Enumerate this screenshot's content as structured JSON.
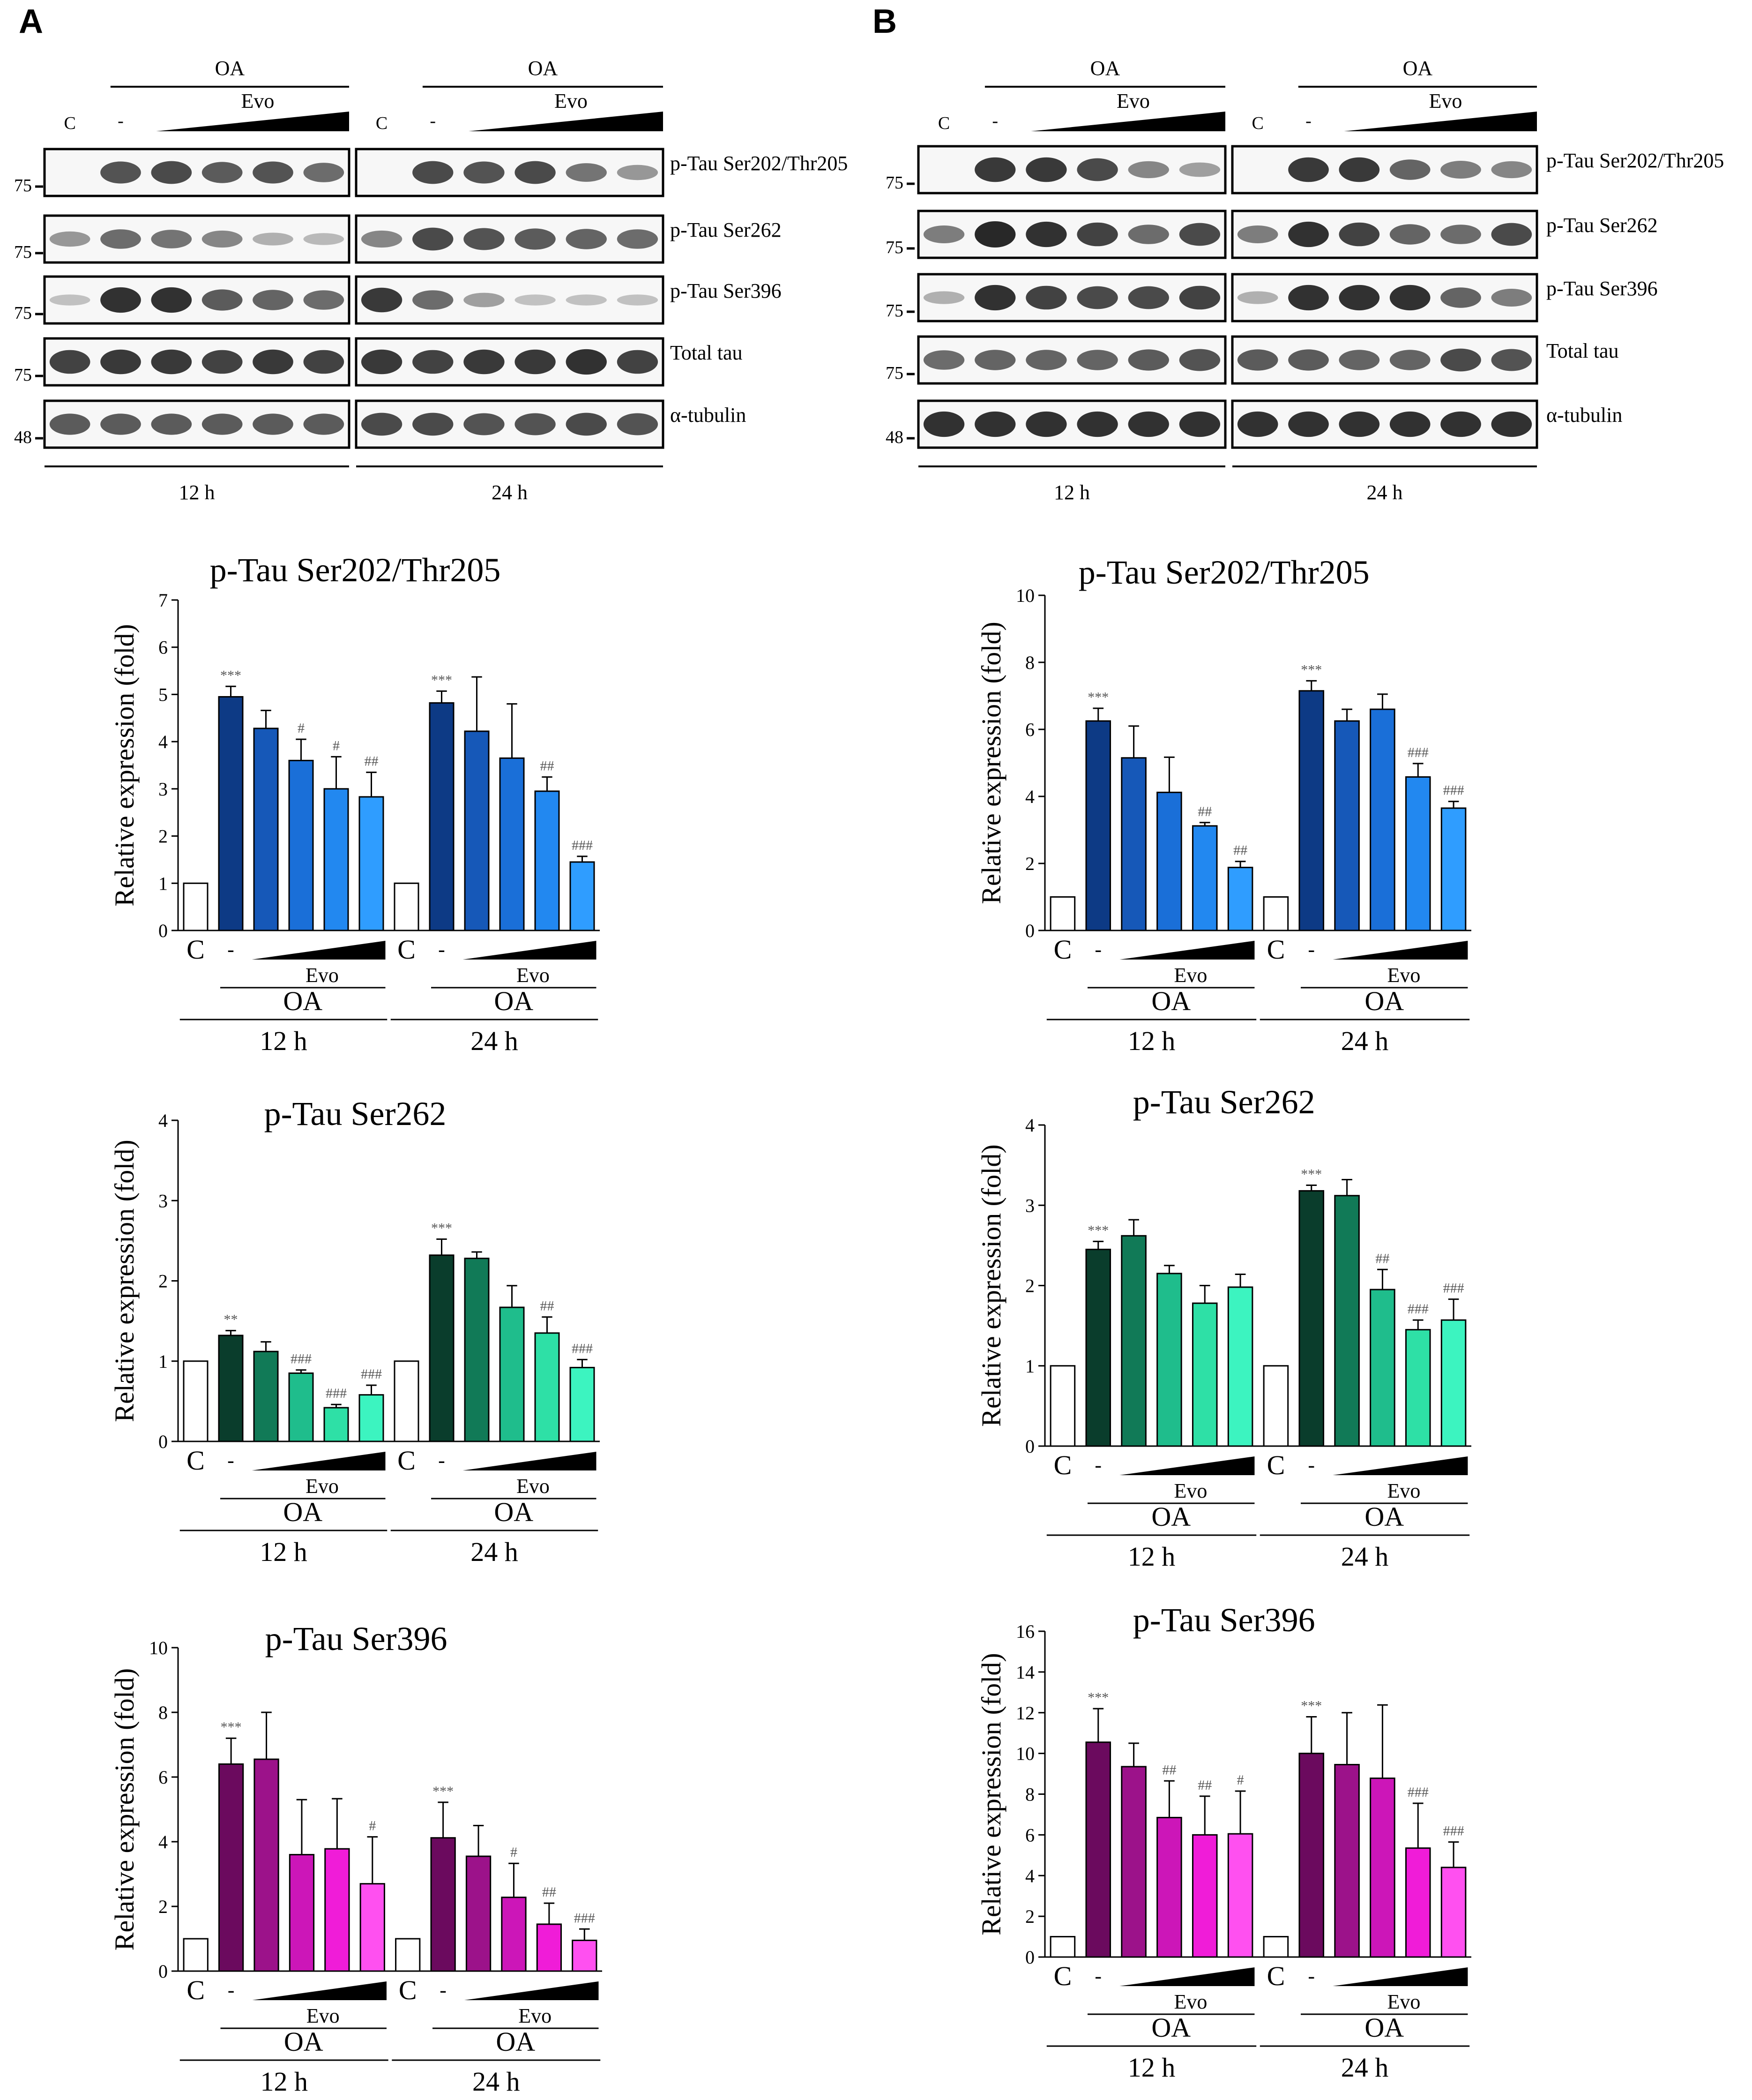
{
  "panels": [
    {
      "letter": "A"
    },
    {
      "letter": "B"
    }
  ],
  "blot_labels": {
    "oa": "OA",
    "evo": "Evo",
    "control": "C",
    "minus": "-",
    "time_12": "12 h",
    "time_24": "24 h",
    "rows": [
      "p-Tau Ser202/Thr205",
      "p-Tau Ser262",
      "p-Tau Ser396",
      "Total tau",
      "α-tubulin"
    ],
    "mw": [
      "75",
      "75",
      "75",
      "75",
      "48"
    ]
  },
  "chart_data": [
    {
      "panel": "A",
      "type": "bar",
      "title": "p-Tau Ser202/Thr205",
      "ylabel": "Relative expression (fold)",
      "ylim": [
        0,
        7
      ],
      "yticks": [
        0,
        1,
        2,
        3,
        4,
        5,
        6,
        7
      ],
      "color_family": "blue",
      "groups": [
        {
          "time": "12 h",
          "values": [
            1,
            4.95,
            4.28,
            3.6,
            3.0,
            2.83
          ],
          "errors": [
            0,
            0.22,
            0.38,
            0.45,
            0.68,
            0.52
          ],
          "sig": [
            "",
            "***",
            "",
            "#",
            "#",
            "##"
          ]
        },
        {
          "time": "24 h",
          "values": [
            1,
            4.82,
            4.22,
            3.65,
            2.95,
            1.45
          ],
          "errors": [
            0,
            0.25,
            1.15,
            1.15,
            0.3,
            0.12
          ],
          "sig": [
            "",
            "***",
            "",
            "",
            "##",
            "###"
          ]
        }
      ]
    },
    {
      "panel": "A",
      "type": "bar",
      "title": "p-Tau Ser262",
      "ylabel": "Relative expression (fold)",
      "ylim": [
        0,
        4
      ],
      "yticks": [
        0,
        1,
        2,
        3,
        4
      ],
      "color_family": "green",
      "groups": [
        {
          "time": "12 h",
          "values": [
            1,
            1.32,
            1.12,
            0.85,
            0.42,
            0.58
          ],
          "errors": [
            0,
            0.06,
            0.12,
            0.04,
            0.04,
            0.12
          ],
          "sig": [
            "",
            "**",
            "",
            "###",
            "###",
            "###"
          ]
        },
        {
          "time": "24 h",
          "values": [
            1,
            2.32,
            2.28,
            1.67,
            1.35,
            0.92
          ],
          "errors": [
            0,
            0.2,
            0.08,
            0.27,
            0.2,
            0.1
          ],
          "sig": [
            "",
            "***",
            "",
            "",
            "##",
            "###"
          ]
        }
      ]
    },
    {
      "panel": "A",
      "type": "bar",
      "title": "p-Tau Ser396",
      "ylabel": "Relative expression (fold)",
      "ylim": [
        0,
        10
      ],
      "yticks": [
        0,
        2,
        4,
        6,
        8,
        10
      ],
      "color_family": "magenta",
      "groups": [
        {
          "time": "12 h",
          "values": [
            1,
            6.4,
            6.55,
            3.6,
            3.78,
            2.7
          ],
          "errors": [
            0,
            0.8,
            1.45,
            1.7,
            1.55,
            1.45
          ],
          "sig": [
            "",
            "***",
            "",
            "",
            "",
            "#"
          ]
        },
        {
          "time": "24 h",
          "values": [
            1,
            4.12,
            3.55,
            2.28,
            1.45,
            0.95
          ],
          "errors": [
            0,
            1.1,
            0.95,
            1.05,
            0.65,
            0.35
          ],
          "sig": [
            "",
            "***",
            "",
            "#",
            "##",
            "###"
          ]
        }
      ]
    },
    {
      "panel": "B",
      "type": "bar",
      "title": "p-Tau Ser202/Thr205",
      "ylabel": "Relative expression (fold)",
      "ylim": [
        0,
        10
      ],
      "yticks": [
        0,
        2,
        4,
        6,
        8,
        10
      ],
      "color_family": "blue",
      "groups": [
        {
          "time": "12 h",
          "values": [
            1,
            6.25,
            5.15,
            4.12,
            3.12,
            1.88
          ],
          "errors": [
            0,
            0.38,
            0.95,
            1.05,
            0.1,
            0.18
          ],
          "sig": [
            "",
            "***",
            "",
            "",
            "##",
            "##"
          ]
        },
        {
          "time": "24 h",
          "values": [
            1,
            7.15,
            6.25,
            6.6,
            4.58,
            3.65
          ],
          "errors": [
            0,
            0.3,
            0.35,
            0.45,
            0.4,
            0.2
          ],
          "sig": [
            "",
            "***",
            "",
            "",
            "###",
            "###"
          ]
        }
      ]
    },
    {
      "panel": "B",
      "type": "bar",
      "title": "p-Tau Ser262",
      "ylabel": "Relative expression (fold)",
      "ylim": [
        0,
        4
      ],
      "yticks": [
        0,
        1,
        2,
        3,
        4
      ],
      "color_family": "green",
      "groups": [
        {
          "time": "12 h",
          "values": [
            1,
            2.45,
            2.62,
            2.15,
            1.78,
            1.98
          ],
          "errors": [
            0,
            0.1,
            0.2,
            0.1,
            0.22,
            0.16
          ],
          "sig": [
            "",
            "***",
            "",
            "",
            "",
            ""
          ]
        },
        {
          "time": "24 h",
          "values": [
            1,
            3.18,
            3.12,
            1.95,
            1.45,
            1.57
          ],
          "errors": [
            0,
            0.07,
            0.2,
            0.25,
            0.12,
            0.26
          ],
          "sig": [
            "",
            "***",
            "",
            "##",
            "###",
            "###"
          ]
        }
      ]
    },
    {
      "panel": "B",
      "type": "bar",
      "title": "p-Tau Ser396",
      "ylabel": "Relative expression (fold)",
      "ylim": [
        0,
        16
      ],
      "yticks": [
        0,
        2,
        4,
        6,
        8,
        10,
        12,
        14,
        16
      ],
      "color_family": "magenta",
      "groups": [
        {
          "time": "12 h",
          "values": [
            1,
            10.55,
            9.35,
            6.85,
            6.0,
            6.05
          ],
          "errors": [
            0,
            1.65,
            1.15,
            1.8,
            1.9,
            2.1
          ],
          "sig": [
            "",
            "***",
            "",
            "##",
            "##",
            "#"
          ]
        },
        {
          "time": "24 h",
          "values": [
            1,
            10.0,
            9.45,
            8.78,
            5.35,
            4.4
          ],
          "errors": [
            0,
            1.8,
            2.55,
            3.6,
            2.2,
            1.25
          ],
          "sig": [
            "",
            "***",
            "",
            "",
            "###",
            "###"
          ]
        }
      ]
    }
  ],
  "colors": {
    "blue": [
      "#ffffff",
      "#0d3a85",
      "#1658b8",
      "#1a6fd8",
      "#2288f0",
      "#2f9dff"
    ],
    "green": [
      "#ffffff",
      "#0a3d2c",
      "#117a57",
      "#1fbd8c",
      "#2ee0a6",
      "#3cf4c0"
    ],
    "magenta": [
      "#ffffff",
      "#6b0a5e",
      "#9c128a",
      "#cc16b8",
      "#f01cd8",
      "#ff50f0"
    ]
  }
}
